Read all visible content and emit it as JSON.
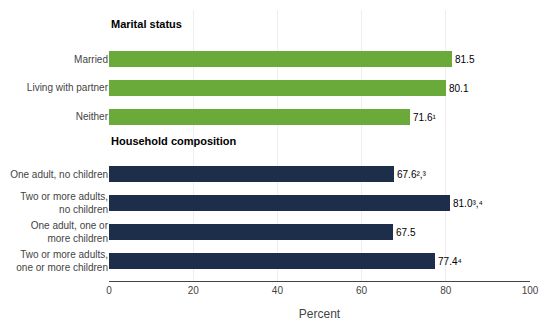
{
  "chart_data": {
    "type": "bar",
    "orientation": "horizontal",
    "categories": [
      "Married",
      "Living with partner",
      "Neither",
      "One adult, no children",
      "Two or more adults,\nno children",
      "One adult, one or\nmore children",
      "Two or more adults,\none or more children"
    ],
    "values": [
      81.5,
      80.1,
      71.6,
      67.6,
      81.0,
      67.5,
      77.4
    ],
    "value_labels": [
      "81.5",
      "80.1",
      "71.6¹",
      "67.6²,³",
      "81.0³,⁴",
      "67.5",
      "77.4⁴"
    ],
    "data_labels": true,
    "colors": [
      "#6aaa3a",
      "#6aaa3a",
      "#6aaa3a",
      "#1c2e4a",
      "#1c2e4a",
      "#1c2e4a",
      "#1c2e4a"
    ],
    "annotations": [
      "Marital status",
      "Household composition"
    ],
    "x_label": "Percent",
    "xlim": [
      0,
      100
    ],
    "xticks": [
      0,
      20,
      40,
      60,
      80,
      100
    ],
    "grid": true
  }
}
